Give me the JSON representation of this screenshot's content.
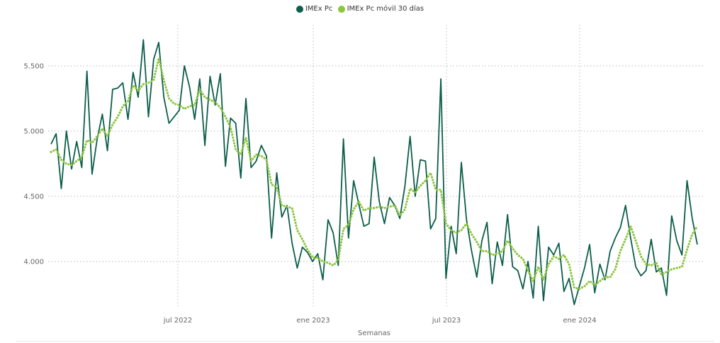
{
  "chart_data": {
    "type": "line",
    "xlabel": "Semanas",
    "ylabel": "",
    "x_ticks": [
      "jul 2022",
      "ene 2023",
      "jul 2023",
      "ene 2024"
    ],
    "y_ticks": [
      "4.000",
      "4.500",
      "5.000",
      "5.500"
    ],
    "ylim": [
      3700,
      5700
    ],
    "grid": true,
    "legend_position": "top-center",
    "series": [
      {
        "name": "IMEx Pc",
        "color": "#0b5e4a",
        "style": "solid",
        "values": [
          4900,
          4980,
          4560,
          5000,
          4710,
          4920,
          4720,
          5460,
          4670,
          4940,
          5130,
          4850,
          5320,
          5330,
          5370,
          5090,
          5450,
          5260,
          5700,
          5110,
          5550,
          5680,
          5260,
          5060,
          5110,
          5160,
          5500,
          5340,
          5090,
          5400,
          4890,
          5420,
          5200,
          5440,
          4730,
          5100,
          5060,
          4640,
          5250,
          4720,
          4770,
          4890,
          4810,
          4180,
          4680,
          4340,
          4430,
          4140,
          3950,
          4110,
          4070,
          4000,
          4060,
          3860,
          4320,
          4220,
          3970,
          4940,
          4180,
          4620,
          4440,
          4270,
          4290,
          4800,
          4460,
          4290,
          4490,
          4430,
          4330,
          4580,
          4960,
          4500,
          4780,
          4770,
          4250,
          4330,
          5400,
          3870,
          4270,
          4060,
          4760,
          4320,
          4080,
          3880,
          4160,
          4300,
          3830,
          4150,
          3970,
          4360,
          3960,
          3930,
          3790,
          4000,
          3720,
          4270,
          3700,
          4110,
          4050,
          4140,
          3770,
          3870,
          3670,
          3810,
          3950,
          4130,
          3760,
          3980,
          3860,
          4080,
          4180,
          4260,
          4430,
          4180,
          3960,
          3890,
          3930,
          4170,
          3920,
          3950,
          3740,
          4350,
          4160,
          4050,
          4620,
          4330,
          4130
        ]
      },
      {
        "name": "IMEx Pc móvil 30 días",
        "color": "#8cc63f",
        "style": "dotted",
        "values": [
          4840,
          4860,
          4780,
          4750,
          4740,
          4770,
          4800,
          4930,
          4910,
          4960,
          5020,
          4960,
          5050,
          5110,
          5190,
          5230,
          5350,
          5310,
          5360,
          5370,
          5390,
          5560,
          5390,
          5250,
          5210,
          5200,
          5170,
          5190,
          5200,
          5320,
          5260,
          5240,
          5220,
          5180,
          5110,
          5030,
          4860,
          4820,
          4950,
          4770,
          4820,
          4810,
          4780,
          4590,
          4570,
          4430,
          4420,
          4410,
          4240,
          4170,
          4090,
          4030,
          4030,
          4000,
          3990,
          3970,
          4010,
          4250,
          4280,
          4400,
          4460,
          4390,
          4410,
          4410,
          4420,
          4410,
          4420,
          4430,
          4350,
          4400,
          4560,
          4530,
          4580,
          4620,
          4680,
          4550,
          4550,
          4290,
          4240,
          4220,
          4240,
          4290,
          4210,
          4150,
          4080,
          4080,
          4050,
          4060,
          4080,
          4160,
          4100,
          4050,
          4020,
          3930,
          3850,
          3960,
          3860,
          3980,
          4040,
          4020,
          4050,
          3980,
          3800,
          3790,
          3810,
          3850,
          3820,
          3850,
          3880,
          3880,
          3940,
          4080,
          4170,
          4270,
          4160,
          4040,
          3980,
          3970,
          3990,
          3900,
          3920,
          3940,
          3950,
          3960,
          4090,
          4210,
          4270
        ]
      }
    ]
  }
}
